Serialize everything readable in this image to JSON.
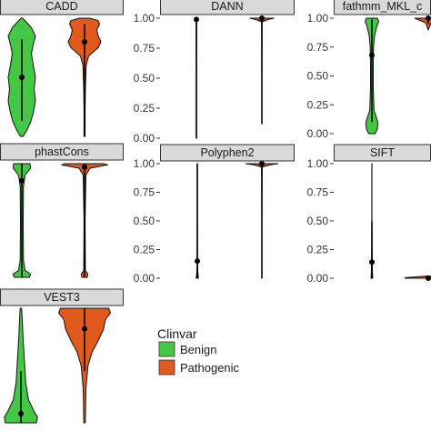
{
  "chart_data": {
    "type": "violin",
    "legend": {
      "title": "Clinvar",
      "entries": [
        {
          "label": "Benign",
          "color": "#44c744"
        },
        {
          "label": "Pathogenic",
          "color": "#e05a1e"
        }
      ]
    },
    "y_ticks": [
      "0.00",
      "0.25",
      "0.50",
      "0.75",
      "1.00"
    ],
    "ylim": [
      0,
      1
    ],
    "panels": [
      {
        "title": "CADD",
        "show_y_axis": false,
        "groups": [
          {
            "label": "Benign",
            "median": 0.5,
            "q1": 0.13,
            "q3": 0.82,
            "density": [
              [
                0.0,
                0.05
              ],
              [
                0.05,
                0.18
              ],
              [
                0.12,
                0.32
              ],
              [
                0.2,
                0.42
              ],
              [
                0.3,
                0.5
              ],
              [
                0.4,
                0.45
              ],
              [
                0.5,
                0.5
              ],
              [
                0.6,
                0.42
              ],
              [
                0.7,
                0.35
              ],
              [
                0.78,
                0.42
              ],
              [
                0.85,
                0.5
              ],
              [
                0.92,
                0.35
              ],
              [
                0.97,
                0.15
              ],
              [
                1.0,
                0.03
              ]
            ]
          },
          {
            "label": "Pathogenic",
            "median": 0.8,
            "q1": 0.0,
            "q3": 0.95,
            "density": [
              [
                0.0,
                0.02
              ],
              [
                0.2,
                0.02
              ],
              [
                0.4,
                0.03
              ],
              [
                0.6,
                0.06
              ],
              [
                0.68,
                0.15
              ],
              [
                0.75,
                0.5
              ],
              [
                0.8,
                0.6
              ],
              [
                0.85,
                0.5
              ],
              [
                0.9,
                0.45
              ],
              [
                0.95,
                0.55
              ],
              [
                0.98,
                0.5
              ],
              [
                1.0,
                0.2
              ]
            ]
          }
        ]
      },
      {
        "title": "DANN",
        "show_y_axis": true,
        "groups": [
          {
            "label": "Benign",
            "median": 0.99,
            "q1": 0.0,
            "q3": 1.0,
            "density": [
              [
                0.0,
                0.005
              ],
              [
                0.5,
                0.005
              ],
              [
                0.96,
                0.01
              ],
              [
                0.99,
                0.04
              ],
              [
                1.0,
                0.02
              ]
            ]
          },
          {
            "label": "Pathogenic",
            "median": 1.0,
            "q1": 0.12,
            "q3": 1.0,
            "density": [
              [
                0.12,
                0.005
              ],
              [
                0.5,
                0.005
              ],
              [
                0.97,
                0.01
              ],
              [
                0.99,
                0.25
              ],
              [
                1.0,
                0.45
              ]
            ]
          }
        ]
      },
      {
        "title": "fathmm_MKL_c",
        "show_y_axis": true,
        "groups": [
          {
            "label": "Benign",
            "median": 0.68,
            "q1": 0.1,
            "q3": 0.99,
            "density": [
              [
                0.0,
                0.12
              ],
              [
                0.04,
                0.2
              ],
              [
                0.1,
                0.22
              ],
              [
                0.2,
                0.08
              ],
              [
                0.4,
                0.05
              ],
              [
                0.6,
                0.05
              ],
              [
                0.75,
                0.06
              ],
              [
                0.85,
                0.1
              ],
              [
                0.93,
                0.18
              ],
              [
                0.97,
                0.25
              ],
              [
                1.0,
                0.2
              ]
            ]
          },
          {
            "label": "Pathogenic",
            "median": 1.0,
            "q1": 0.95,
            "q3": 1.0,
            "density": [
              [
                0.9,
                0.005
              ],
              [
                0.96,
                0.1
              ],
              [
                0.98,
                0.3
              ],
              [
                1.0,
                0.5
              ]
            ]
          }
        ]
      },
      {
        "title": "phastCons",
        "show_y_axis": false,
        "groups": [
          {
            "label": "Benign",
            "median": 0.85,
            "q1": 0.0,
            "q3": 1.0,
            "density": [
              [
                0.0,
                0.28
              ],
              [
                0.03,
                0.32
              ],
              [
                0.06,
                0.12
              ],
              [
                0.15,
                0.06
              ],
              [
                0.5,
                0.05
              ],
              [
                0.8,
                0.06
              ],
              [
                0.9,
                0.12
              ],
              [
                0.96,
                0.32
              ],
              [
                1.0,
                0.3
              ]
            ]
          },
          {
            "label": "Pathogenic",
            "median": 0.97,
            "q1": 0.0,
            "q3": 1.0,
            "density": [
              [
                0.0,
                0.1
              ],
              [
                0.03,
                0.12
              ],
              [
                0.06,
                0.03
              ],
              [
                0.5,
                0.02
              ],
              [
                0.9,
                0.05
              ],
              [
                0.96,
                0.2
              ],
              [
                0.99,
                0.85
              ],
              [
                1.0,
                0.7
              ]
            ]
          }
        ]
      },
      {
        "title": "Polyphen2",
        "show_y_axis": true,
        "groups": [
          {
            "label": "Benign",
            "median": 0.15,
            "q1": 0.0,
            "q3": 1.0,
            "density": [
              [
                0.0,
                0.04
              ],
              [
                0.05,
                0.02
              ],
              [
                0.1,
                0.01
              ],
              [
                0.5,
                0.005
              ],
              [
                0.95,
                0.005
              ],
              [
                1.0,
                0.005
              ]
            ]
          },
          {
            "label": "Pathogenic",
            "median": 1.0,
            "q1": 0.0,
            "q3": 1.0,
            "density": [
              [
                0.0,
                0.005
              ],
              [
                0.5,
                0.005
              ],
              [
                0.97,
                0.01
              ],
              [
                0.99,
                0.3
              ],
              [
                1.0,
                0.6
              ]
            ]
          }
        ]
      },
      {
        "title": "SIFT",
        "show_y_axis": true,
        "groups": [
          {
            "label": "Benign",
            "median": 0.14,
            "q1": 0.0,
            "q3": 0.5,
            "density": [
              [
                0.0,
                0.03
              ],
              [
                0.05,
                0.02
              ],
              [
                0.2,
                0.01
              ],
              [
                0.5,
                0.005
              ],
              [
                0.8,
                0.005
              ],
              [
                1.0,
                0.005
              ]
            ]
          },
          {
            "label": "Pathogenic",
            "median": 0.0,
            "q1": 0.0,
            "q3": 0.0,
            "density": [
              [
                0.0,
                0.85
              ],
              [
                0.005,
                0.85
              ],
              [
                0.02,
                0.005
              ]
            ]
          }
        ]
      },
      {
        "title": "VEST3",
        "show_y_axis": false,
        "groups": [
          {
            "label": "Benign",
            "median": 0.08,
            "q1": 0.0,
            "q3": 0.45,
            "density": [
              [
                0.0,
                0.45
              ],
              [
                0.05,
                0.48
              ],
              [
                0.1,
                0.38
              ],
              [
                0.2,
                0.22
              ],
              [
                0.35,
                0.14
              ],
              [
                0.55,
                0.1
              ],
              [
                0.75,
                0.06
              ],
              [
                0.9,
                0.04
              ],
              [
                1.0,
                0.02
              ]
            ]
          },
          {
            "label": "Pathogenic",
            "median": 0.82,
            "q1": 0.45,
            "q3": 1.0,
            "density": [
              [
                0.0,
                0.02
              ],
              [
                0.3,
                0.04
              ],
              [
                0.5,
                0.1
              ],
              [
                0.62,
                0.22
              ],
              [
                0.72,
                0.4
              ],
              [
                0.82,
                0.55
              ],
              [
                0.9,
                0.6
              ],
              [
                0.96,
                0.75
              ],
              [
                1.0,
                0.7
              ]
            ]
          }
        ]
      }
    ]
  }
}
